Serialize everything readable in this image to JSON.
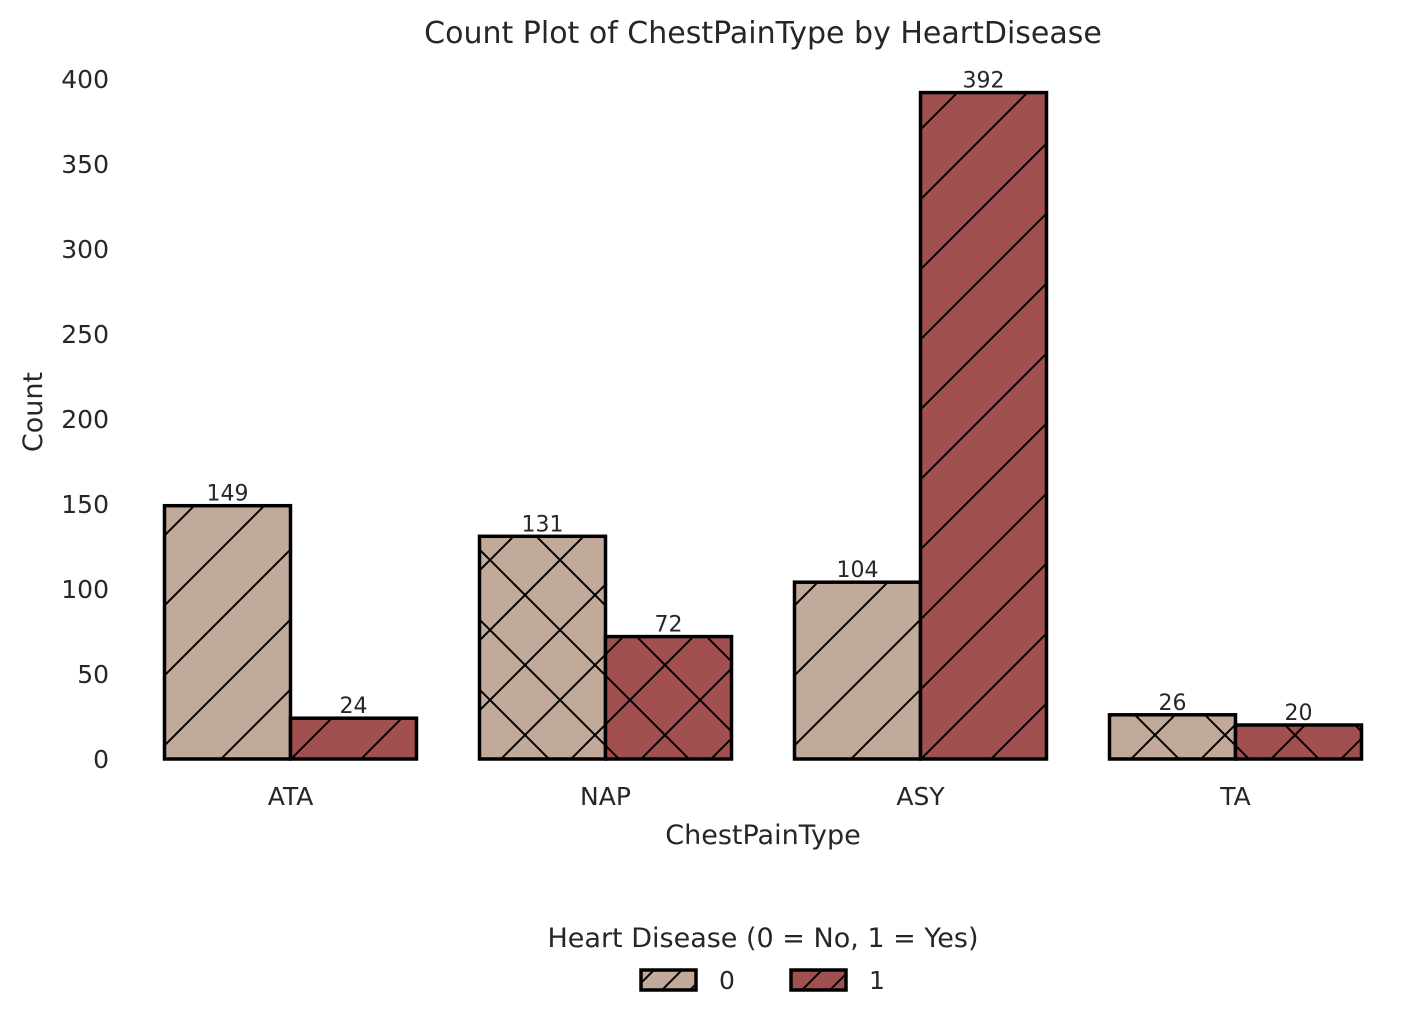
{
  "chart_data": {
    "type": "bar",
    "title": "Count Plot of ChestPainType by HeartDisease",
    "xlabel": "ChestPainType",
    "ylabel": "Count",
    "categories": [
      "ATA",
      "NAP",
      "ASY",
      "TA"
    ],
    "ylim": [
      0,
      400
    ],
    "yticks": [
      0,
      50,
      100,
      150,
      200,
      250,
      300,
      350,
      400
    ],
    "grid": false,
    "legend": {
      "title": "Heart Disease (0 = No, 1 = Yes)",
      "placement": "bottom-center"
    },
    "series": [
      {
        "name": "0",
        "color": "#c2aa9b",
        "values": [
          149,
          131,
          104,
          26
        ]
      },
      {
        "name": "1",
        "color": "#a14f4f",
        "values": [
          24,
          72,
          392,
          20
        ]
      }
    ],
    "hatch_by_category": [
      "diagonal",
      "cross",
      "diagonal",
      "cross"
    ],
    "legend_hatch": "diagonal",
    "edge_color": "#000000"
  }
}
